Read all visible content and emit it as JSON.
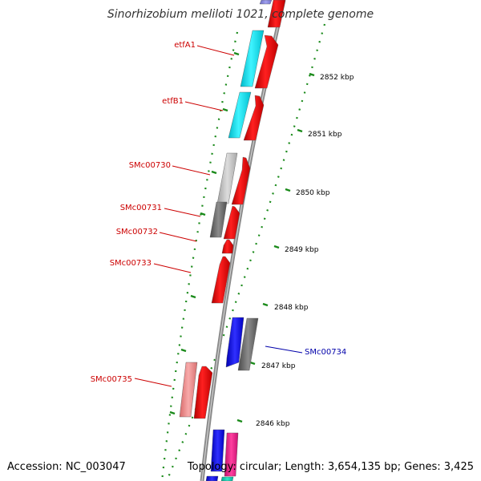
{
  "title": "Sinorhizobium meliloti 1021, complete genome",
  "footer": {
    "accession": "Accession: NC_003047",
    "topology": "Topology: circular; Length: 3,654,135 bp; Genes: 3,425"
  },
  "colors": {
    "backbone": "#8a8a8a",
    "gc_ticks": "#1a8a1a",
    "label_red": "#cc0000",
    "label_blue": "#0000aa",
    "forward_gene": "#ff0000"
  },
  "scale_ticks": [
    {
      "label": "2852 kbp"
    },
    {
      "label": "2851 kbp"
    },
    {
      "label": "2850 kbp"
    },
    {
      "label": "2849 kbp"
    },
    {
      "label": "2848 kbp"
    },
    {
      "label": "2847 kbp"
    },
    {
      "label": "2846 kbp"
    }
  ],
  "gene_labels": [
    {
      "name": "etfA1",
      "color": "#cc0000"
    },
    {
      "name": "etfB1",
      "color": "#cc0000"
    },
    {
      "name": "SMc00730",
      "color": "#cc0000"
    },
    {
      "name": "SMc00731",
      "color": "#cc0000"
    },
    {
      "name": "SMc00732",
      "color": "#cc0000"
    },
    {
      "name": "SMc00733",
      "color": "#cc0000"
    },
    {
      "name": "SMc00734",
      "color": "#0000aa"
    },
    {
      "name": "SMc00735",
      "color": "#cc0000"
    }
  ]
}
